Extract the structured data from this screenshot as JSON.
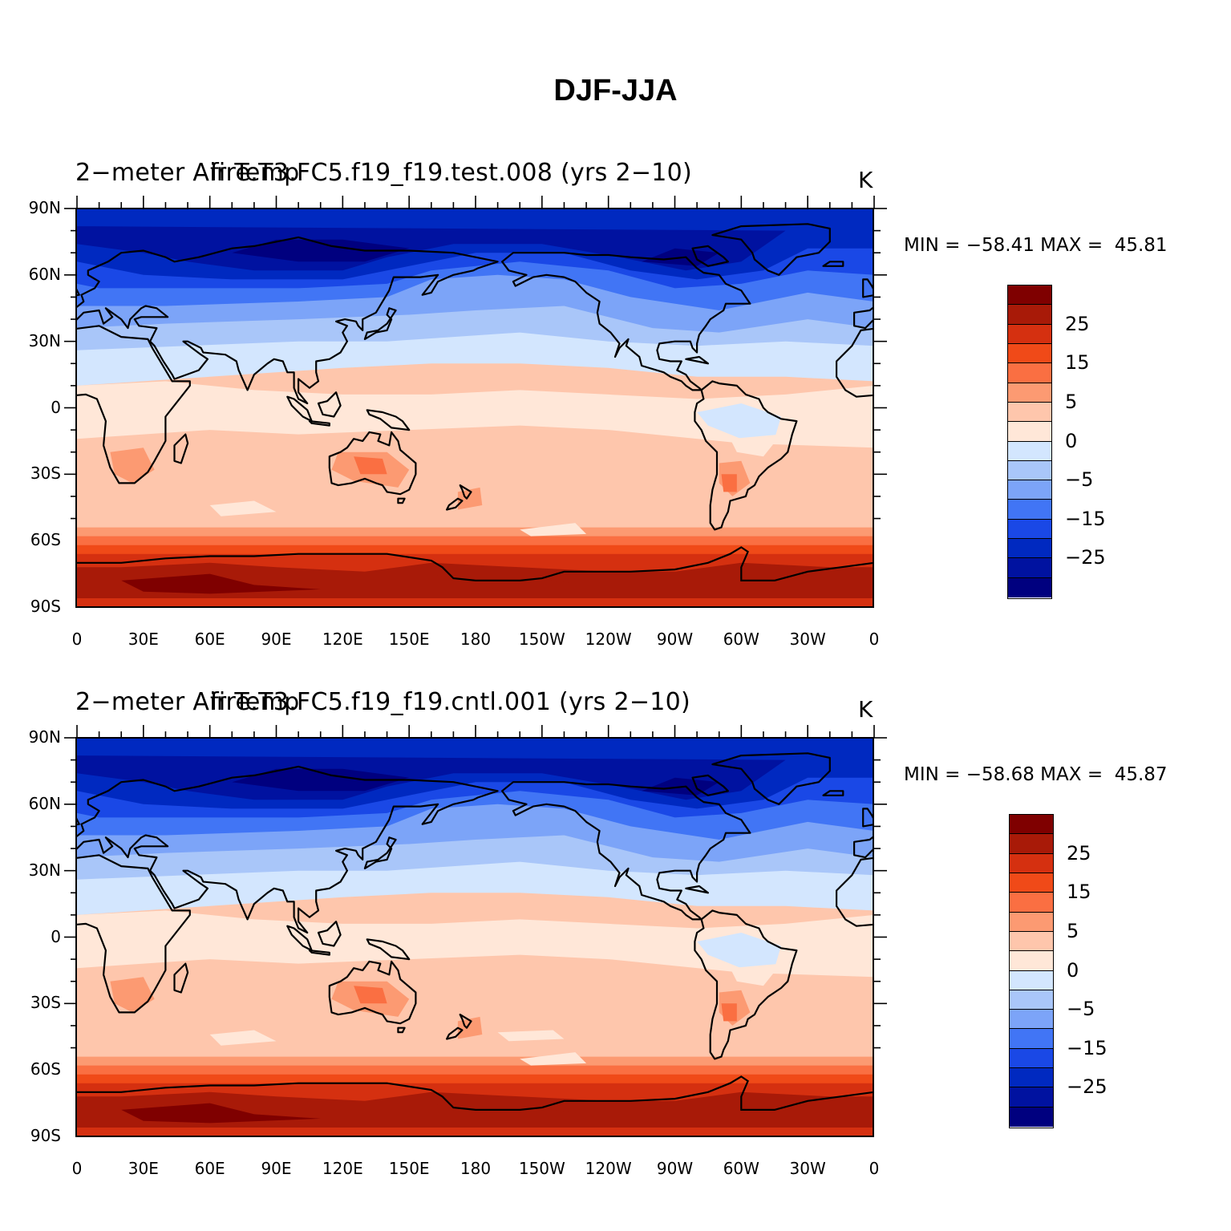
{
  "title": "DJF-JJA",
  "colors": [
    "#e8f1fe",
    "#00007f",
    "#0012a0",
    "#0029c0",
    "#1a48e6",
    "#4175f5",
    "#7ca4f8",
    "#a9c6f9",
    "#d3e6fe",
    "#ffe7d8",
    "#fec6ac",
    "#fc9a72",
    "#fa6f42",
    "#f04a18",
    "#d53010",
    "#a81a08",
    "#7f0000"
  ],
  "panels": [
    {
      "left_title": "2−meter Air Temp",
      "center_title": "fire.T3.FC5.f19_f19.test.008 (yrs 2−10)",
      "units": "K",
      "min_label": "MIN =",
      "min_value": "−58.41",
      "max_label": "MAX =",
      "max_value": "45.81"
    },
    {
      "left_title": "2−meter Air Temp",
      "center_title": "fire.T3.FC5.f19_f19.cntl.001 (yrs 2−10)",
      "units": "K",
      "min_label": "MIN =",
      "min_value": "−58.68",
      "max_label": "MAX =",
      "max_value": "45.87"
    }
  ],
  "lat_labels": [
    "90N",
    "60N",
    "30N",
    "0",
    "30S",
    "60S",
    "90S"
  ],
  "lon_labels": [
    "0",
    "30E",
    "60E",
    "90E",
    "120E",
    "150E",
    "180",
    "150W",
    "120W",
    "90W",
    "60W",
    "30W",
    "0"
  ],
  "colorbar_labels": [
    "25",
    "15",
    "5",
    "0",
    "−5",
    "−15",
    "−25"
  ]
}
